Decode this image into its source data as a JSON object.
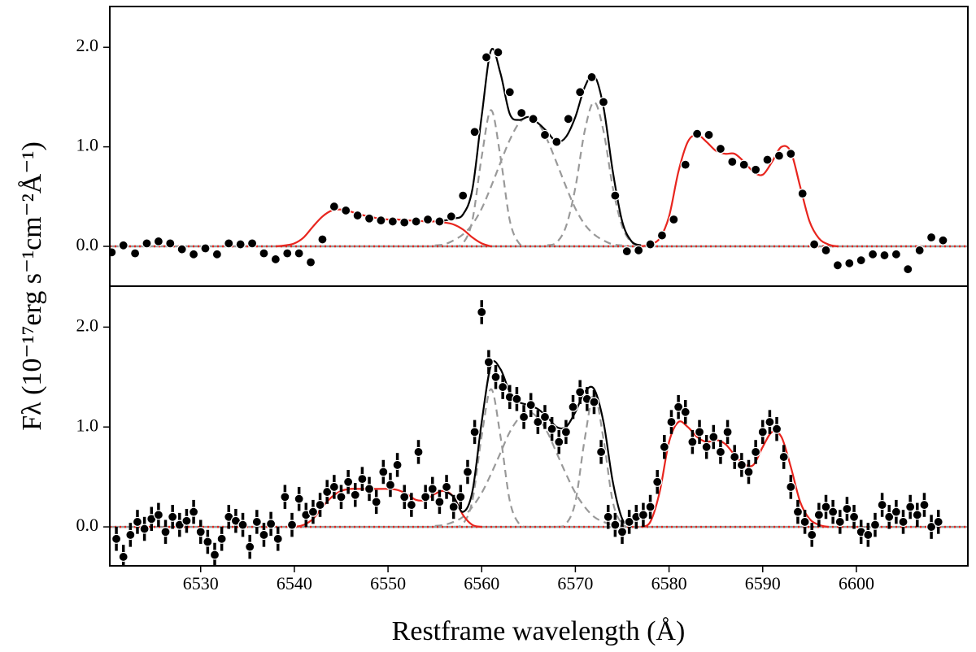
{
  "axis_labels": {
    "x": "Restframe wavelength (Å)",
    "y": "Fλ (10⁻¹⁷erg s⁻¹cm⁻²Å⁻¹)"
  },
  "chart_data": [
    {
      "type": "errorbar",
      "xlim": [
        6520.3,
        6611.9
      ],
      "ylim": [
        -0.4,
        2.41
      ],
      "yticks": [
        {
          "value": 0,
          "label": "0.0"
        },
        {
          "value": 1,
          "label": "1.0"
        },
        {
          "value": 2,
          "label": "2.0"
        }
      ],
      "baseline": {
        "color": "#999999",
        "dotted_color": "#e8251e"
      },
      "data": {
        "color": "#000000",
        "yerr": 0.03,
        "x": [
          6520.5,
          6521.75,
          6523,
          6524.25,
          6525.5,
          6526.75,
          6528,
          6529.25,
          6530.5,
          6531.75,
          6533,
          6534.25,
          6535.5,
          6536.75,
          6538,
          6539.25,
          6540.5,
          6541.75,
          6543,
          6544.25,
          6545.5,
          6546.75,
          6548,
          6549.25,
          6550.5,
          6551.75,
          6553,
          6554.25,
          6555.5,
          6556.75,
          6558,
          6559.25,
          6560.5,
          6561.75,
          6563,
          6564.25,
          6565.5,
          6566.75,
          6568,
          6569.25,
          6570.5,
          6571.75,
          6573,
          6574.25,
          6575.5,
          6576.75,
          6578,
          6579.25,
          6580.5,
          6581.75,
          6583,
          6584.25,
          6585.5,
          6586.75,
          6588,
          6589.25,
          6590.5,
          6591.75,
          6593,
          6594.25,
          6595.5,
          6596.75,
          6598,
          6599.25,
          6600.5,
          6601.75,
          6603,
          6604.25,
          6605.5,
          6606.75,
          6608,
          6609.25
        ],
        "values": [
          -0.06,
          0.01,
          -0.07,
          0.03,
          0.05,
          0.03,
          -0.03,
          -0.08,
          -0.02,
          -0.08,
          0.03,
          0.02,
          0.03,
          -0.07,
          -0.13,
          -0.07,
          -0.07,
          -0.16,
          0.07,
          0.4,
          0.36,
          0.31,
          0.28,
          0.26,
          0.25,
          0.24,
          0.25,
          0.27,
          0.25,
          0.3,
          0.51,
          1.15,
          1.9,
          1.95,
          1.55,
          1.34,
          1.28,
          1.12,
          1.05,
          1.28,
          1.55,
          1.7,
          1.45,
          0.51,
          -0.05,
          -0.04,
          0.02,
          0.11,
          0.27,
          0.82,
          1.13,
          1.12,
          0.98,
          0.85,
          0.82,
          0.77,
          0.87,
          0.91,
          0.93,
          0.53,
          0.02,
          -0.04,
          -0.19,
          -0.17,
          -0.14,
          -0.08,
          -0.09,
          -0.08,
          -0.23,
          -0.04,
          0.09,
          0.06
        ]
      },
      "models": [
        {
          "color": "#999999",
          "dashed": true,
          "x": [
            6557,
            6558,
            6559,
            6560,
            6561,
            6562,
            6563,
            6564,
            6565
          ],
          "values": [
            0.0,
            0.03,
            0.26,
            0.9,
            1.37,
            0.9,
            0.26,
            0.03,
            0.0
          ]
        },
        {
          "color": "#999999",
          "dashed": true,
          "x": [
            6555,
            6556,
            6557,
            6558,
            6559,
            6560,
            6561,
            6562,
            6563,
            6564,
            6565,
            6566,
            6567,
            6568,
            6569,
            6570,
            6571,
            6572,
            6573,
            6574,
            6575
          ],
          "values": [
            0.01,
            0.02,
            0.06,
            0.12,
            0.22,
            0.38,
            0.6,
            0.84,
            1.07,
            1.24,
            1.3,
            1.24,
            1.07,
            0.84,
            0.6,
            0.38,
            0.22,
            0.12,
            0.06,
            0.02,
            0.01
          ]
        },
        {
          "color": "#999999",
          "dashed": true,
          "x": [
            6567,
            6568,
            6569,
            6570,
            6571,
            6572,
            6573,
            6574,
            6575,
            6576,
            6577
          ],
          "values": [
            0.01,
            0.04,
            0.2,
            0.59,
            1.16,
            1.45,
            1.16,
            0.59,
            0.2,
            0.04,
            0.01
          ]
        },
        {
          "color": "#e8251e",
          "dashed": false,
          "x": [
            6538,
            6539,
            6540,
            6541,
            6542,
            6543,
            6544,
            6545,
            6546,
            6547,
            6548,
            6549,
            6550,
            6551,
            6552,
            6553,
            6554,
            6555,
            6556,
            6557,
            6558,
            6559,
            6560,
            6561
          ],
          "values": [
            0,
            0.01,
            0.03,
            0.09,
            0.2,
            0.3,
            0.36,
            0.37,
            0.35,
            0.32,
            0.3,
            0.28,
            0.27,
            0.27,
            0.26,
            0.26,
            0.25,
            0.25,
            0.24,
            0.22,
            0.17,
            0.09,
            0.03,
            0
          ]
        },
        {
          "color": "#e8251e",
          "dashed": false,
          "x": [
            6577,
            6578,
            6579,
            6580,
            6581,
            6582,
            6583,
            6584,
            6585,
            6586,
            6587,
            6588,
            6589,
            6590,
            6591,
            6592,
            6593,
            6594,
            6595,
            6596,
            6597,
            6598
          ],
          "values": [
            0,
            0.02,
            0.08,
            0.3,
            0.75,
            1.05,
            1.12,
            1.05,
            0.96,
            0.93,
            0.93,
            0.85,
            0.75,
            0.72,
            0.85,
            1.0,
            0.95,
            0.6,
            0.25,
            0.08,
            0.02,
            0
          ]
        },
        {
          "color": "#000000",
          "dashed": false,
          "x": [
            6555,
            6556,
            6557,
            6558,
            6559,
            6560,
            6561,
            6562,
            6563,
            6564,
            6565,
            6566,
            6567,
            6568,
            6569,
            6570,
            6571,
            6572,
            6573,
            6574,
            6575,
            6576,
            6577
          ],
          "values": [
            0.26,
            0.26,
            0.28,
            0.32,
            0.57,
            1.31,
            1.97,
            1.74,
            1.33,
            1.27,
            1.3,
            1.24,
            1.15,
            1.05,
            1.1,
            1.3,
            1.6,
            1.72,
            1.4,
            0.75,
            0.25,
            0.05,
            0.01
          ]
        }
      ]
    },
    {
      "type": "errorbar",
      "xlim": [
        6520.3,
        6611.9
      ],
      "ylim": [
        -0.39,
        2.41
      ],
      "xticks": [
        6530,
        6540,
        6550,
        6560,
        6570,
        6580,
        6590,
        6600
      ],
      "yticks": [
        {
          "value": 0,
          "label": "0.0"
        },
        {
          "value": 1,
          "label": "1.0"
        },
        {
          "value": 2,
          "label": "2.0"
        }
      ],
      "baseline": {
        "color": "#999999",
        "dotted_color": "#e8251e"
      },
      "data": {
        "color": "#000000",
        "yerr": 0.12,
        "x": [
          6521,
          6521.75,
          6522.5,
          6523.25,
          6524,
          6524.75,
          6525.5,
          6526.25,
          6527,
          6527.75,
          6528.5,
          6529.25,
          6530,
          6530.75,
          6531.5,
          6532.25,
          6533,
          6533.75,
          6534.5,
          6535.25,
          6536,
          6536.75,
          6537.5,
          6538.25,
          6539,
          6539.75,
          6540.5,
          6541.25,
          6542,
          6542.75,
          6543.5,
          6544.25,
          6545,
          6545.75,
          6546.5,
          6547.25,
          6548,
          6548.75,
          6549.5,
          6550.25,
          6551,
          6551.75,
          6552.5,
          6553.25,
          6554,
          6554.75,
          6555.5,
          6556.25,
          6557,
          6557.75,
          6558.5,
          6559.25,
          6560,
          6560.75,
          6561.5,
          6562.25,
          6563,
          6563.75,
          6564.5,
          6565.25,
          6566,
          6566.75,
          6567.5,
          6568.25,
          6569,
          6569.75,
          6570.5,
          6571.25,
          6572,
          6572.75,
          6573.5,
          6574.25,
          6575,
          6575.75,
          6576.5,
          6577.25,
          6578,
          6578.75,
          6579.5,
          6580.25,
          6581,
          6581.75,
          6582.5,
          6583.25,
          6584,
          6584.75,
          6585.5,
          6586.25,
          6587,
          6587.75,
          6588.5,
          6589.25,
          6590,
          6590.75,
          6591.5,
          6592.25,
          6593,
          6593.75,
          6594.5,
          6595.25,
          6596,
          6596.75,
          6597.5,
          6598.25,
          6599,
          6599.75,
          6600.5,
          6601.25,
          6602,
          6602.75,
          6603.5,
          6604.25,
          6605,
          6605.75,
          6606.5,
          6607.25,
          6608,
          6608.75
        ],
        "values": [
          -0.12,
          -0.3,
          -0.08,
          0.05,
          -0.02,
          0.08,
          0.12,
          -0.05,
          0.1,
          0.02,
          0.06,
          0.15,
          -0.05,
          -0.15,
          -0.28,
          -0.12,
          0.1,
          0.06,
          0.02,
          -0.2,
          0.05,
          -0.08,
          0.03,
          -0.12,
          0.3,
          0.02,
          0.28,
          0.12,
          0.15,
          0.22,
          0.35,
          0.4,
          0.3,
          0.45,
          0.32,
          0.48,
          0.38,
          0.25,
          0.55,
          0.42,
          0.62,
          0.3,
          0.22,
          0.75,
          0.3,
          0.38,
          0.25,
          0.4,
          0.2,
          0.3,
          0.55,
          0.95,
          2.15,
          1.65,
          1.5,
          1.4,
          1.3,
          1.28,
          1.1,
          1.22,
          1.05,
          1.1,
          0.98,
          0.85,
          0.95,
          1.2,
          1.35,
          1.28,
          1.25,
          0.75,
          0.1,
          0.02,
          -0.05,
          0.05,
          0.1,
          0.12,
          0.2,
          0.45,
          0.8,
          1.05,
          1.2,
          1.15,
          0.85,
          0.95,
          0.8,
          0.9,
          0.75,
          0.95,
          0.7,
          0.62,
          0.55,
          0.75,
          0.95,
          1.05,
          0.98,
          0.7,
          0.4,
          0.15,
          0.05,
          -0.08,
          0.12,
          0.2,
          0.15,
          0.05,
          0.18,
          0.1,
          -0.05,
          -0.08,
          0.02,
          0.22,
          0.1,
          0.15,
          0.05,
          0.2,
          0.12,
          0.22,
          0.0,
          0.05
        ]
      },
      "models": [
        {
          "color": "#999999",
          "dashed": true,
          "x": [
            6557,
            6558,
            6559,
            6560,
            6561,
            6562,
            6563,
            6564,
            6565
          ],
          "values": [
            0,
            0.03,
            0.26,
            0.91,
            1.38,
            0.91,
            0.26,
            0.03,
            0
          ]
        },
        {
          "color": "#999999",
          "dashed": true,
          "x": [
            6555,
            6556,
            6557,
            6558,
            6559,
            6560,
            6561,
            6562,
            6563,
            6564,
            6565,
            6566,
            6567,
            6568,
            6569,
            6570,
            6571,
            6572,
            6573,
            6574,
            6575
          ],
          "values": [
            0.01,
            0.02,
            0.05,
            0.1,
            0.2,
            0.34,
            0.53,
            0.74,
            0.95,
            1.09,
            1.15,
            1.09,
            0.95,
            0.74,
            0.53,
            0.34,
            0.2,
            0.1,
            0.05,
            0.02,
            0.01
          ]
        },
        {
          "color": "#999999",
          "dashed": true,
          "x": [
            6568,
            6569,
            6570,
            6571,
            6572,
            6573,
            6574,
            6575,
            6576
          ],
          "values": [
            0,
            0.03,
            0.25,
            0.88,
            1.33,
            0.88,
            0.25,
            0.03,
            0
          ]
        },
        {
          "color": "#e8251e",
          "dashed": false,
          "x": [
            6540,
            6541,
            6542,
            6543,
            6544,
            6545,
            6546,
            6547,
            6548,
            6549,
            6550,
            6551,
            6552,
            6553,
            6554,
            6555,
            6556,
            6557,
            6558,
            6559,
            6560
          ],
          "values": [
            0,
            0.02,
            0.08,
            0.2,
            0.3,
            0.36,
            0.38,
            0.38,
            0.38,
            0.38,
            0.38,
            0.37,
            0.33,
            0.27,
            0.27,
            0.33,
            0.36,
            0.3,
            0.12,
            0.02,
            0
          ]
        },
        {
          "color": "#e8251e",
          "dashed": false,
          "x": [
            6577,
            6578,
            6579,
            6580,
            6581,
            6582,
            6583,
            6584,
            6585,
            6586,
            6587,
            6588,
            6589,
            6590,
            6591,
            6592,
            6593,
            6594,
            6595,
            6596,
            6597
          ],
          "values": [
            0,
            0.05,
            0.35,
            0.85,
            1.05,
            1.0,
            0.9,
            0.85,
            0.87,
            0.83,
            0.72,
            0.63,
            0.62,
            0.8,
            0.95,
            0.9,
            0.6,
            0.25,
            0.08,
            0.02,
            0
          ]
        },
        {
          "color": "#000000",
          "dashed": false,
          "x": [
            6556,
            6557,
            6558,
            6559,
            6560,
            6561,
            6562,
            6563,
            6564,
            6565,
            6566,
            6567,
            6568,
            6569,
            6570,
            6571,
            6572,
            6573,
            6574,
            6575,
            6576
          ],
          "values": [
            0.36,
            0.3,
            0.15,
            0.35,
            1.05,
            1.62,
            1.58,
            1.35,
            1.25,
            1.22,
            1.18,
            1.1,
            1.0,
            1.0,
            1.15,
            1.35,
            1.38,
            1.05,
            0.45,
            0.08,
            0
          ]
        }
      ]
    }
  ]
}
